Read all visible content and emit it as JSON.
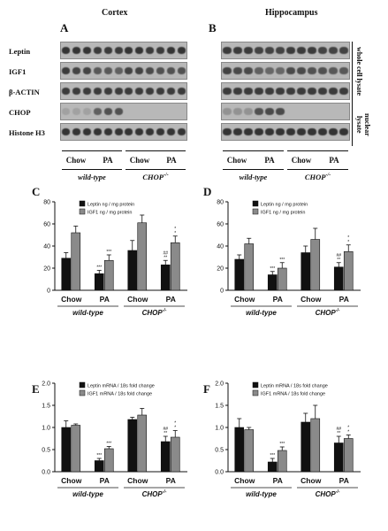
{
  "figure": {
    "cortex_title": "Cortex",
    "hippocampus_title": "Hippocampus",
    "panel_labels": {
      "A": "A",
      "B": "B",
      "C": "C",
      "D": "D",
      "E": "E",
      "F": "F"
    },
    "blot_rows": [
      "Leptin",
      "IGF1",
      "β-ACTIN",
      "CHOP",
      "Histone H3"
    ],
    "side_labels": {
      "whole": "whole cell lysate",
      "nuclear": "nuclear lysate"
    },
    "groups": [
      "Chow",
      "PA",
      "Chow",
      "PA"
    ],
    "genotypes": [
      "wild-type",
      "CHOP"
    ],
    "genotype_superscript": "-/-",
    "band_intensity": {
      "A": [
        [
          0.9,
          0.9,
          0.9,
          0.85,
          0.85,
          0.85,
          0.9,
          0.9,
          0.85,
          0.85,
          0.9,
          0.9
        ],
        [
          0.85,
          0.8,
          0.8,
          0.65,
          0.65,
          0.6,
          0.8,
          0.8,
          0.75,
          0.7,
          0.7,
          0.7
        ],
        [
          0.85,
          0.85,
          0.85,
          0.85,
          0.85,
          0.85,
          0.85,
          0.85,
          0.85,
          0.85,
          0.85,
          0.85
        ],
        [
          0.15,
          0.15,
          0.15,
          0.6,
          0.7,
          0.7,
          0.0,
          0.0,
          0.0,
          0.0,
          0.0,
          0.0
        ],
        [
          0.9,
          0.9,
          0.9,
          0.9,
          0.9,
          0.9,
          0.9,
          0.9,
          0.9,
          0.9,
          0.9,
          0.9
        ]
      ],
      "B": [
        [
          0.85,
          0.85,
          0.85,
          0.8,
          0.8,
          0.8,
          0.85,
          0.85,
          0.85,
          0.8,
          0.8,
          0.8
        ],
        [
          0.8,
          0.75,
          0.75,
          0.6,
          0.55,
          0.55,
          0.75,
          0.75,
          0.7,
          0.7,
          0.65,
          0.65
        ],
        [
          0.85,
          0.85,
          0.85,
          0.85,
          0.85,
          0.85,
          0.85,
          0.85,
          0.85,
          0.85,
          0.85,
          0.85
        ],
        [
          0.25,
          0.25,
          0.25,
          0.7,
          0.75,
          0.75,
          0.0,
          0.0,
          0.0,
          0.0,
          0.0,
          0.0
        ],
        [
          0.9,
          0.9,
          0.9,
          0.9,
          0.9,
          0.9,
          0.9,
          0.9,
          0.9,
          0.9,
          0.9,
          0.9
        ]
      ]
    }
  },
  "chart_data": [
    {
      "panel": "C",
      "type": "bar",
      "categories": [
        "Chow",
        "PA",
        "Chow",
        "PA"
      ],
      "series": [
        {
          "name": "Leptin ng / mg protein",
          "color": "#111111",
          "values": [
            29,
            15,
            36,
            23
          ],
          "errors": [
            5,
            3,
            9,
            4
          ],
          "sig": [
            "",
            "***",
            "",
            "##\n**"
          ]
        },
        {
          "name": "IGF1 ng / mg protein",
          "color": "#8a8a8a",
          "values": [
            52,
            27,
            61,
            43
          ],
          "errors": [
            6,
            5,
            7,
            6
          ],
          "sig": [
            "",
            "***",
            "",
            "*\n*"
          ]
        }
      ],
      "ylim": [
        0,
        80
      ],
      "yticks": [
        "0",
        "20",
        "40",
        "60",
        "80"
      ]
    },
    {
      "panel": "D",
      "type": "bar",
      "categories": [
        "Chow",
        "PA",
        "Chow",
        "PA"
      ],
      "series": [
        {
          "name": "Leptin ng / mg protein",
          "color": "#111111",
          "values": [
            28,
            14,
            34,
            21
          ],
          "errors": [
            4,
            3,
            6,
            4
          ],
          "sig": [
            "",
            "***",
            "",
            "##\n**"
          ]
        },
        {
          "name": "IGF1 ng / mg protein",
          "color": "#8a8a8a",
          "values": [
            42,
            20,
            46,
            35
          ],
          "errors": [
            5,
            5,
            10,
            6
          ],
          "sig": [
            "",
            "***",
            "",
            "*\n*"
          ]
        }
      ],
      "ylim": [
        0,
        80
      ],
      "yticks": [
        "0",
        "20",
        "40",
        "60",
        "80"
      ]
    },
    {
      "panel": "E",
      "type": "bar",
      "categories": [
        "Chow",
        "PA",
        "Chow",
        "PA"
      ],
      "series": [
        {
          "name": "Leptin mRNA / 18s  fold change",
          "color": "#111111",
          "values": [
            1.0,
            0.25,
            1.18,
            0.68
          ],
          "errors": [
            0.15,
            0.05,
            0.05,
            0.12
          ],
          "sig": [
            "",
            "***",
            "",
            "##\n**"
          ]
        },
        {
          "name": "IGF1 mRNA / 18s  fold change",
          "color": "#8a8a8a",
          "values": [
            1.05,
            0.52,
            1.28,
            0.78
          ],
          "errors": [
            0.03,
            0.05,
            0.15,
            0.15
          ],
          "sig": [
            "",
            "***",
            "",
            "*\n*"
          ]
        }
      ],
      "ylim": [
        0,
        2.0
      ],
      "yticks": [
        "0.0",
        "0.5",
        "1.0",
        "1.5",
        "2.0"
      ]
    },
    {
      "panel": "F",
      "type": "bar",
      "categories": [
        "Chow",
        "PA",
        "Chow",
        "PA"
      ],
      "series": [
        {
          "name": "Leptin mRNA / 18s  fold change",
          "color": "#111111",
          "values": [
            1.0,
            0.22,
            1.12,
            0.65
          ],
          "errors": [
            0.2,
            0.08,
            0.2,
            0.15
          ],
          "sig": [
            "",
            "***",
            "",
            "##\n**"
          ]
        },
        {
          "name": "IGF1 mRNA / 18s  fold change",
          "color": "#8a8a8a",
          "values": [
            0.95,
            0.48,
            1.2,
            0.75
          ],
          "errors": [
            0.05,
            0.08,
            0.3,
            0.08
          ],
          "sig": [
            "",
            "***",
            "",
            "*\n*"
          ]
        }
      ],
      "ylim": [
        0,
        2.0
      ],
      "yticks": [
        "0.0",
        "0.5",
        "1.0",
        "1.5",
        "2.0"
      ]
    }
  ]
}
